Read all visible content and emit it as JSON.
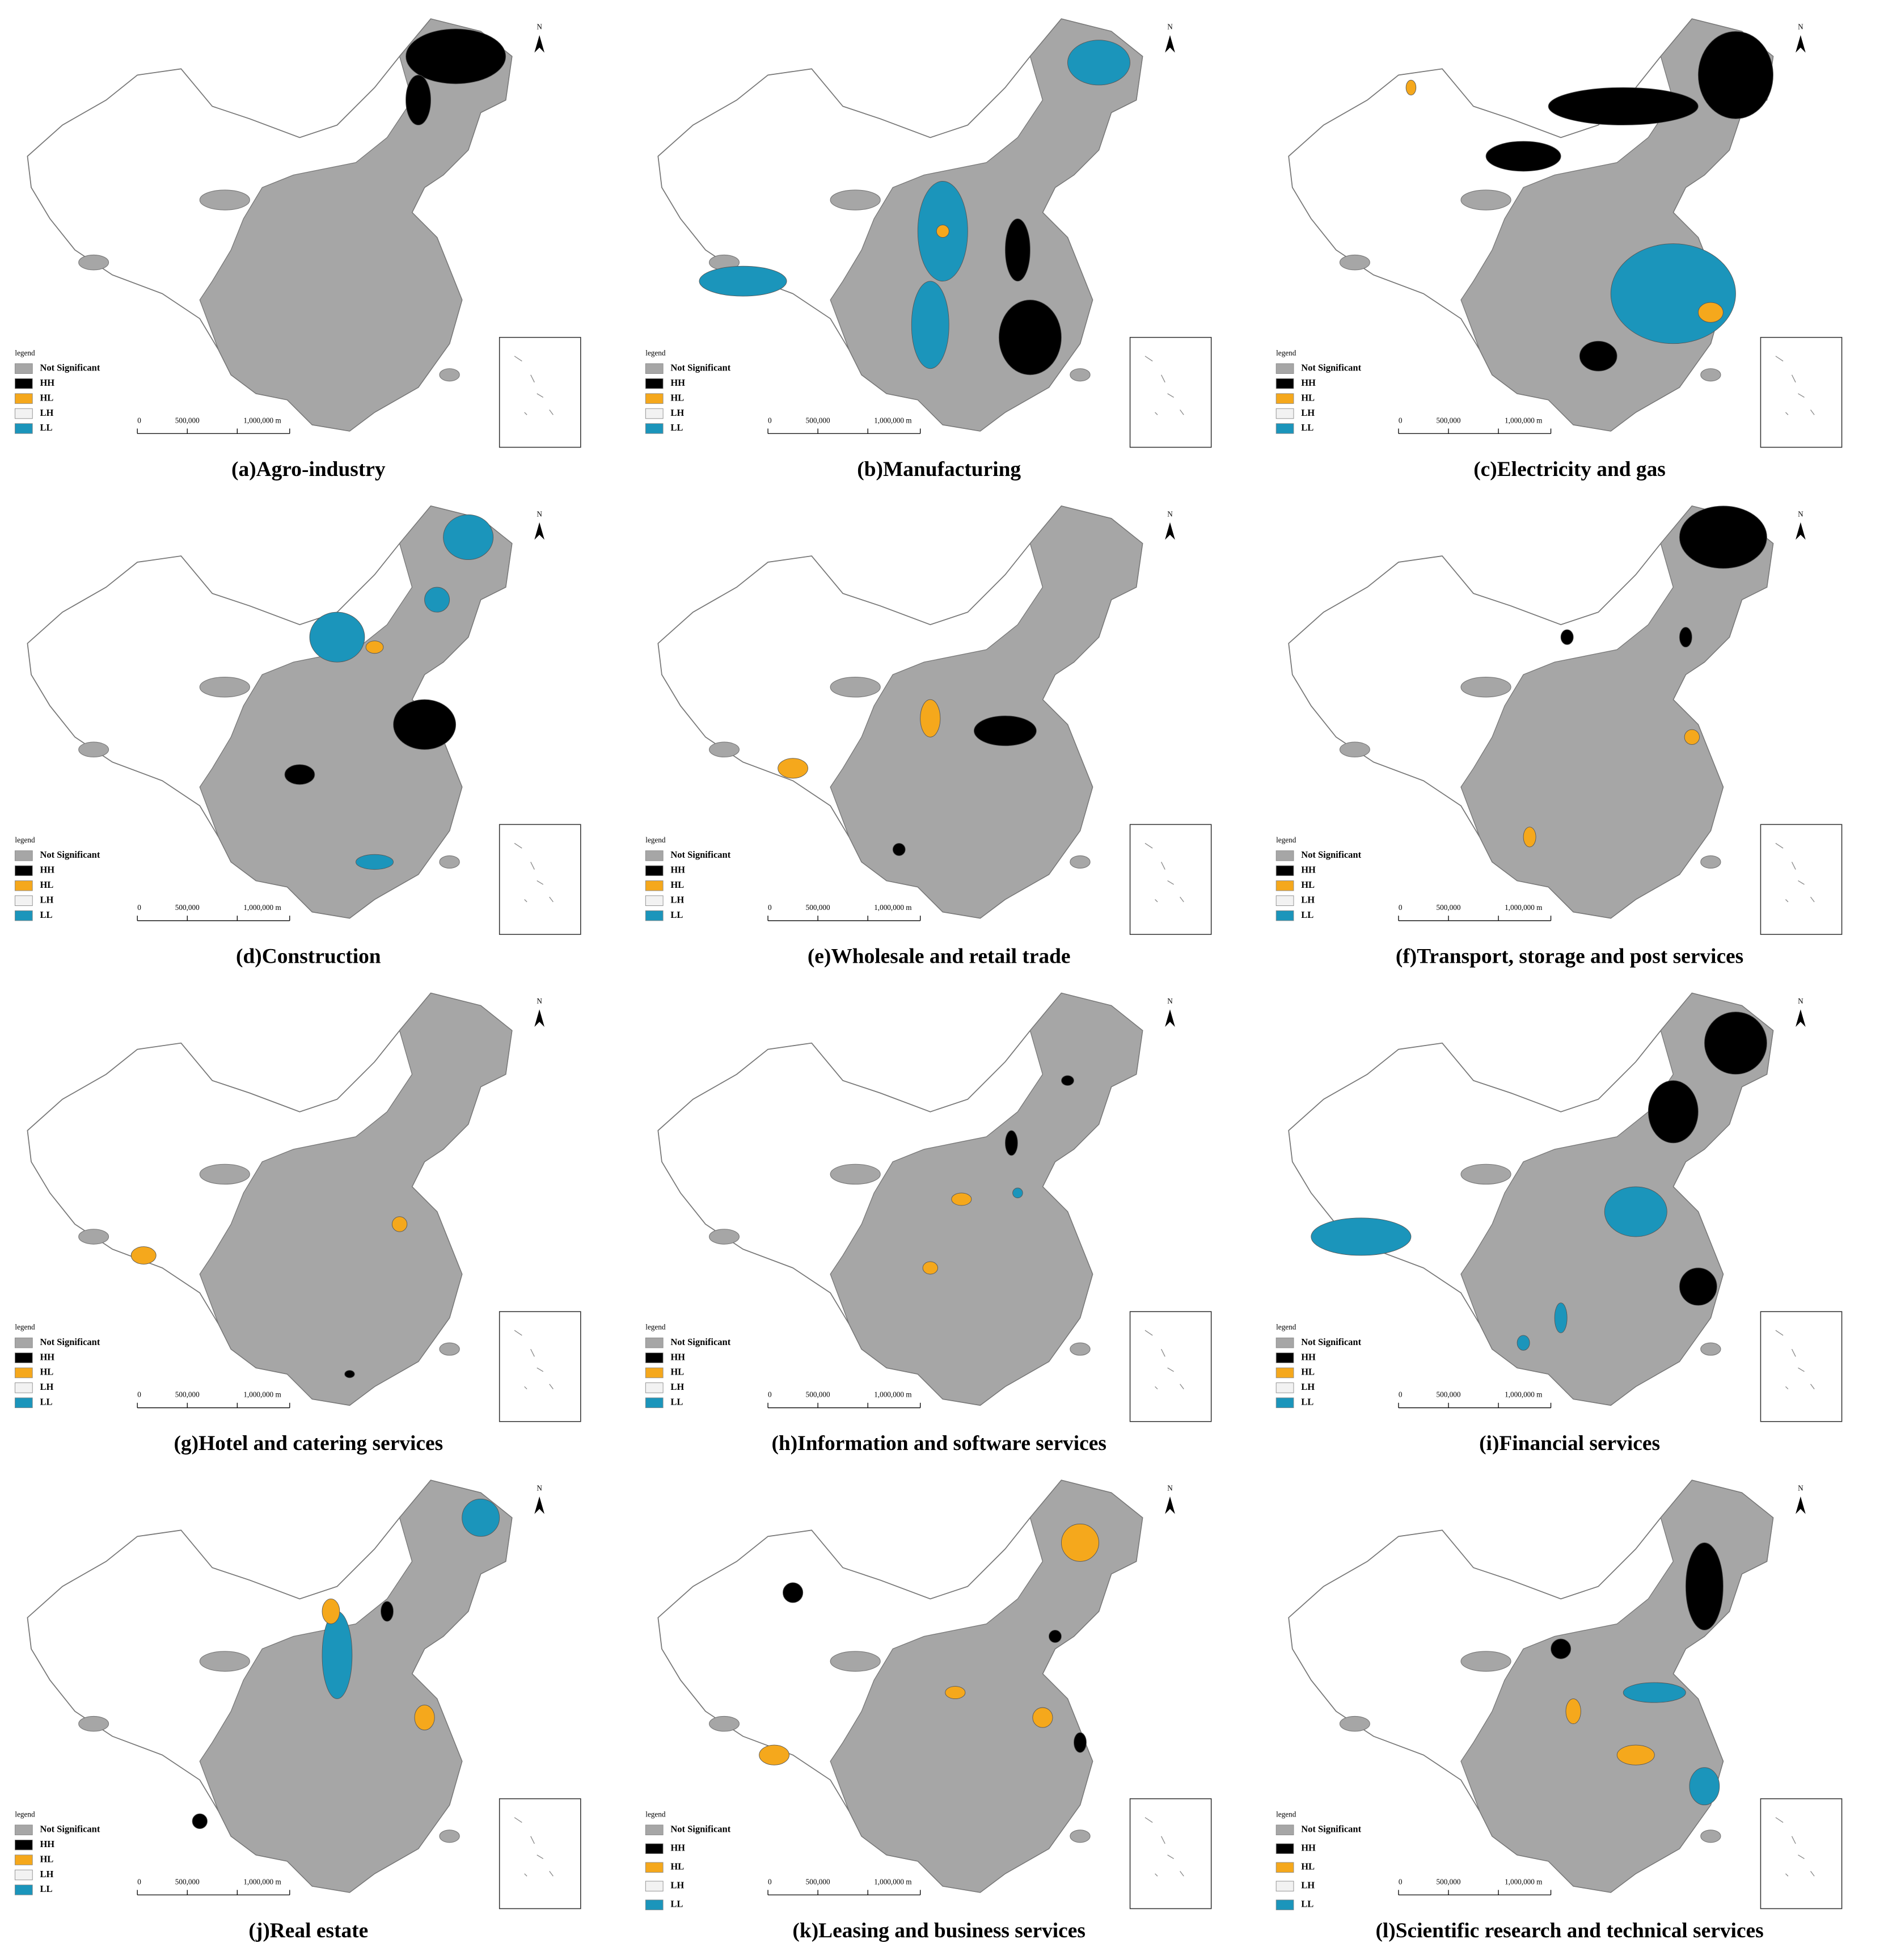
{
  "panels": [
    {
      "caption": "(a)Agro-industry"
    },
    {
      "caption": "(b)Manufacturing"
    },
    {
      "caption": "(c)Electricity and gas"
    },
    {
      "caption": "(d)Construction"
    },
    {
      "caption": "(e)Wholesale and retail trade"
    },
    {
      "caption": "(f)Transport, storage and post services"
    },
    {
      "caption": "(g)Hotel and catering services"
    },
    {
      "caption": "(h)Information and software services"
    },
    {
      "caption": "(i)Financial services"
    },
    {
      "caption": "(j)Real estate"
    },
    {
      "caption": "(k)Leasing and business services"
    },
    {
      "caption": "(l)Scientific research and technical services"
    }
  ],
  "legend": {
    "title": "legend",
    "items": [
      {
        "label": "Not Significant",
        "color": "#a6a6a6"
      },
      {
        "label": "HH",
        "color": "#000000"
      },
      {
        "label": "HL",
        "color": "#f5a81c"
      },
      {
        "label": "LH",
        "color": "#f2f2f2"
      },
      {
        "label": "LL",
        "color": "#1b95bb"
      }
    ]
  },
  "scale_bar": {
    "labels": [
      "0",
      "500,000",
      "1,000,000 m"
    ]
  },
  "north": "N"
}
